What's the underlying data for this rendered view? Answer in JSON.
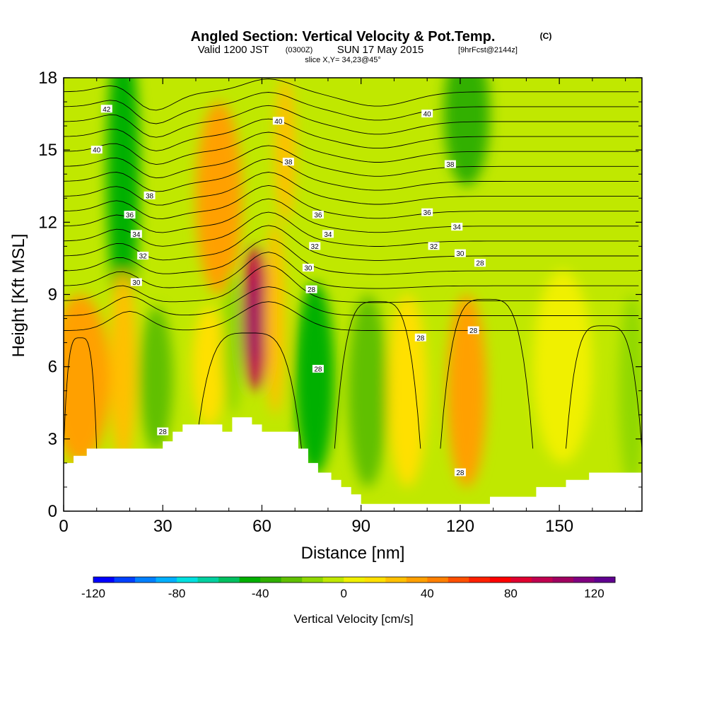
{
  "chart_data": {
    "type": "heatmap",
    "title": "Angled Section: Vertical Velocity & Pot.Temp.",
    "title_unit": "(C)",
    "subtitle_main": "Valid 1200 JST",
    "subtitle_z": "(0300Z)",
    "subtitle_date": "SUN 17 May 2015",
    "subtitle_fcst": "[9hrFcst@2144z]",
    "slice_label": "slice X,Y= 34,23@45°",
    "xlabel": "Distance [nm]",
    "ylabel": "Height [Kft MSL]",
    "xlim": [
      0,
      175
    ],
    "ylim": [
      0,
      18
    ],
    "x_ticks": [
      "0",
      "30",
      "60",
      "90",
      "120",
      "150"
    ],
    "y_ticks": [
      "0",
      "3",
      "6",
      "9",
      "12",
      "15",
      "18"
    ],
    "colorbar": {
      "label": "Vertical Velocity [cm/s]",
      "min": -120,
      "max": 130,
      "step": 10,
      "tick_labels": [
        "-120",
        "-80",
        "-40",
        "0",
        "40",
        "80",
        "120"
      ],
      "colors": [
        "#0000ff",
        "#0040ff",
        "#0080ff",
        "#00b0ff",
        "#00e0e0",
        "#00d0a0",
        "#00c060",
        "#00b000",
        "#30b000",
        "#60c000",
        "#90d800",
        "#c0e800",
        "#f0f000",
        "#ffe000",
        "#ffc000",
        "#ffa000",
        "#ff8000",
        "#ff5000",
        "#ff2000",
        "#ff0000",
        "#e00030",
        "#c00050",
        "#a00060",
        "#800080",
        "#600090"
      ]
    },
    "terrain_kft": [
      [
        0,
        2.0
      ],
      [
        3,
        2.0
      ],
      [
        3,
        2.3
      ],
      [
        7,
        2.3
      ],
      [
        7,
        2.6
      ],
      [
        30,
        2.6
      ],
      [
        30,
        2.9
      ],
      [
        33,
        2.9
      ],
      [
        33,
        3.3
      ],
      [
        36,
        3.3
      ],
      [
        36,
        3.6
      ],
      [
        48,
        3.6
      ],
      [
        48,
        3.3
      ],
      [
        51,
        3.3
      ],
      [
        51,
        3.9
      ],
      [
        57,
        3.9
      ],
      [
        57,
        3.6
      ],
      [
        60,
        3.6
      ],
      [
        60,
        3.3
      ],
      [
        71,
        3.3
      ],
      [
        71,
        2.6
      ],
      [
        74,
        2.6
      ],
      [
        74,
        2.0
      ],
      [
        77,
        2.0
      ],
      [
        77,
        1.6
      ],
      [
        81,
        1.6
      ],
      [
        81,
        1.3
      ],
      [
        84,
        1.3
      ],
      [
        84,
        1.0
      ],
      [
        87,
        1.0
      ],
      [
        87,
        0.7
      ],
      [
        90,
        0.7
      ],
      [
        90,
        0.3
      ],
      [
        129,
        0.3
      ],
      [
        129,
        0.6
      ],
      [
        143,
        0.6
      ],
      [
        143,
        1.0
      ],
      [
        152,
        1.0
      ],
      [
        152,
        1.3
      ],
      [
        159,
        1.3
      ],
      [
        159,
        1.6
      ],
      [
        175,
        1.6
      ]
    ],
    "velocity_cells": [
      {
        "x": 5,
        "z": 5.5,
        "w": 0,
        "rx": 9,
        "rz": 3.5,
        "value": 35
      },
      {
        "x": 18,
        "z": 14,
        "w": 0,
        "rx": 5,
        "rz": 6,
        "value": -50
      },
      {
        "x": 18,
        "z": 6,
        "w": 0,
        "rx": 4,
        "rz": 4,
        "value": 20
      },
      {
        "x": 28,
        "z": 5.5,
        "w": 0,
        "rx": 5,
        "rz": 3,
        "value": -25
      },
      {
        "x": 47,
        "z": 13,
        "w": 0,
        "rx": 7,
        "rz": 4,
        "value": 30
      },
      {
        "x": 44,
        "z": 6,
        "w": 0,
        "rx": 5,
        "rz": 2.5,
        "value": 10
      },
      {
        "x": 51,
        "z": 7,
        "w": 0,
        "rx": 3,
        "rz": 3,
        "value": -20
      },
      {
        "x": 58,
        "z": 8,
        "w": 0,
        "rx": 4,
        "rz": 3,
        "value": 90
      },
      {
        "x": 64,
        "z": 8,
        "w": 0,
        "rx": 3,
        "rz": 4,
        "value": 20
      },
      {
        "x": 67,
        "z": 15,
        "w": 0,
        "rx": 3,
        "rz": 3,
        "value": 20
      },
      {
        "x": 76,
        "z": 5.5,
        "w": 0,
        "rx": 6,
        "rz": 4,
        "value": -45
      },
      {
        "x": 92,
        "z": 5,
        "w": 0,
        "rx": 6,
        "rz": 4,
        "value": -30
      },
      {
        "x": 104,
        "z": 5,
        "w": 0,
        "rx": 6,
        "rz": 4,
        "value": 10
      },
      {
        "x": 122,
        "z": 5,
        "w": 0,
        "rx": 6,
        "rz": 4,
        "value": 35
      },
      {
        "x": 122,
        "z": 16.5,
        "w": 0,
        "rx": 7,
        "rz": 3,
        "value": -35
      },
      {
        "x": 151,
        "z": 6,
        "w": 0,
        "rx": 9,
        "rz": 4,
        "value": 5
      },
      {
        "x": 172,
        "z": 5,
        "w": 0,
        "rx": 4,
        "rz": 4,
        "value": -20
      }
    ],
    "isentrope_labels": [
      {
        "text": "42",
        "x": 13,
        "z": 16.7
      },
      {
        "text": "40",
        "x": 10,
        "z": 15.0
      },
      {
        "text": "38",
        "x": 26,
        "z": 13.1
      },
      {
        "text": "36",
        "x": 20,
        "z": 12.3
      },
      {
        "text": "34",
        "x": 22,
        "z": 11.5
      },
      {
        "text": "32",
        "x": 24,
        "z": 10.6
      },
      {
        "text": "30",
        "x": 22,
        "z": 9.5
      },
      {
        "text": "40",
        "x": 65,
        "z": 16.2
      },
      {
        "text": "38",
        "x": 68,
        "z": 14.5
      },
      {
        "text": "36",
        "x": 77,
        "z": 12.3
      },
      {
        "text": "34",
        "x": 80,
        "z": 11.5
      },
      {
        "text": "32",
        "x": 76,
        "z": 11.0
      },
      {
        "text": "30",
        "x": 74,
        "z": 10.1
      },
      {
        "text": "28",
        "x": 75,
        "z": 9.2
      },
      {
        "text": "40",
        "x": 110,
        "z": 16.5
      },
      {
        "text": "38",
        "x": 117,
        "z": 14.4
      },
      {
        "text": "36",
        "x": 110,
        "z": 12.4
      },
      {
        "text": "34",
        "x": 119,
        "z": 11.8
      },
      {
        "text": "32",
        "x": 112,
        "z": 11.0
      },
      {
        "text": "30",
        "x": 120,
        "z": 10.7
      },
      {
        "text": "28",
        "x": 126,
        "z": 10.3
      },
      {
        "text": "28",
        "x": 30,
        "z": 3.3
      },
      {
        "text": "28",
        "x": 77,
        "z": 5.9
      },
      {
        "text": "28",
        "x": 108,
        "z": 7.2
      },
      {
        "text": "28",
        "x": 124,
        "z": 7.5
      },
      {
        "text": "28",
        "x": 120,
        "z": 1.6
      }
    ]
  }
}
